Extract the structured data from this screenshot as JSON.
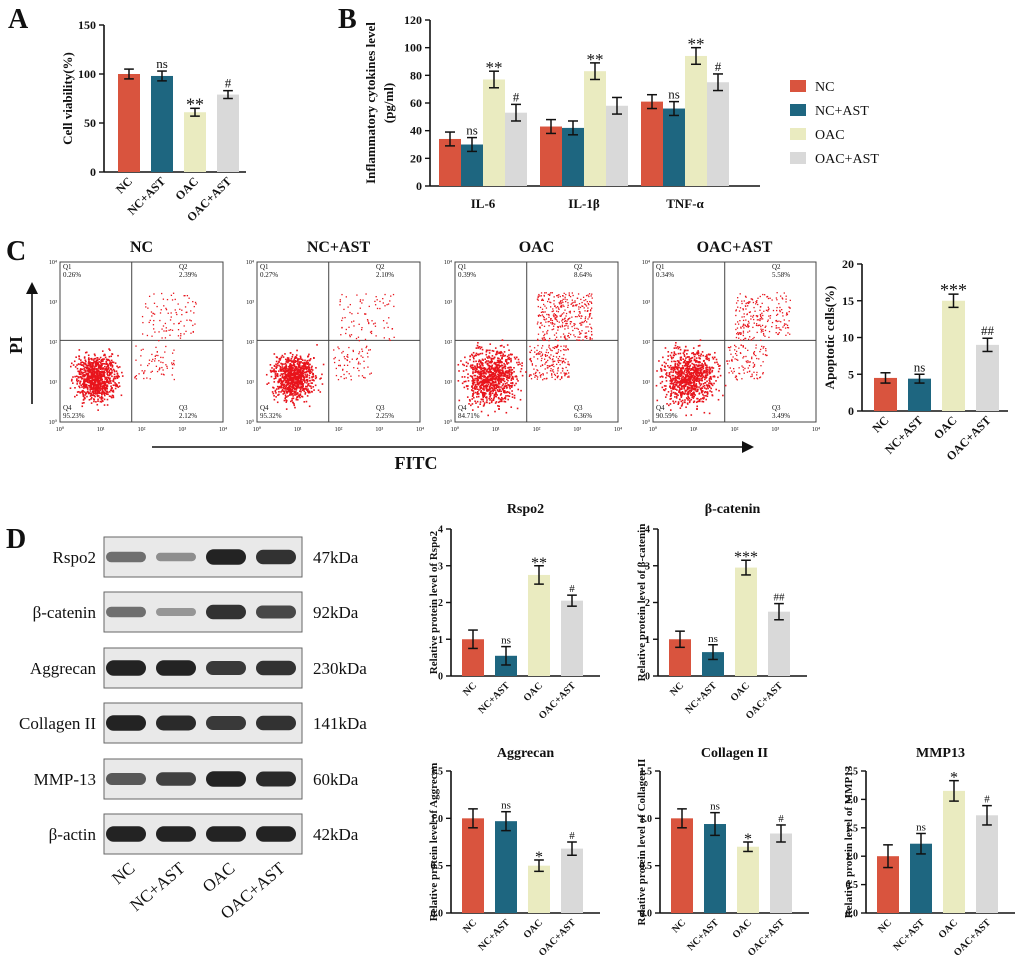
{
  "colors": {
    "NC": "#d9543e",
    "NC+AST": "#1e6680",
    "OAC": "#eaebc0",
    "OAC+AST": "#d9d9d9",
    "dot": "#e8141c",
    "blot_band": "#1a1a1a",
    "blot_bg": "#e9e9e9"
  },
  "panels": {
    "A": "A",
    "B": "B",
    "C": "C",
    "D": "D"
  },
  "chart_data": [
    {
      "id": "A",
      "type": "bar",
      "title": "",
      "ylabel": "Cell viability(%)",
      "categories": [
        "NC",
        "NC+AST",
        "OAC",
        "OAC+AST"
      ],
      "values": [
        100,
        98,
        61,
        79
      ],
      "errors": [
        5,
        5,
        4,
        4
      ],
      "annotations": [
        "",
        "ns",
        "**",
        "#"
      ],
      "ylim": [
        0,
        150
      ],
      "yticks": [
        0,
        50,
        100,
        150
      ]
    },
    {
      "id": "B",
      "type": "bar",
      "title": "",
      "ylabel": "Inflammatory cytokines level (pg/ml)",
      "groups": [
        "IL-6",
        "IL-1β",
        "TNF-α"
      ],
      "ylim": [
        0,
        120
      ],
      "yticks": [
        0,
        20,
        40,
        60,
        80,
        100,
        120
      ],
      "series": [
        {
          "name": "NC",
          "values": [
            34,
            43,
            61
          ],
          "errors": [
            5,
            5,
            5
          ],
          "annotations": [
            "",
            "",
            ""
          ]
        },
        {
          "name": "NC+AST",
          "values": [
            30,
            42,
            56
          ],
          "errors": [
            5,
            5,
            5
          ],
          "annotations": [
            "ns",
            "",
            "ns"
          ]
        },
        {
          "name": "OAC",
          "values": [
            77,
            83,
            94
          ],
          "errors": [
            6,
            6,
            6
          ],
          "annotations": [
            "**",
            "**",
            "**"
          ]
        },
        {
          "name": "OAC+AST",
          "values": [
            53,
            58,
            75
          ],
          "errors": [
            6,
            6,
            6
          ],
          "annotations": [
            "#",
            "",
            "#"
          ]
        }
      ]
    },
    {
      "id": "C",
      "type": "bar",
      "title": "",
      "ylabel": "Apoptotic cells(%)",
      "categories": [
        "NC",
        "NC+AST",
        "OAC",
        "OAC+AST"
      ],
      "values": [
        4.5,
        4.4,
        15,
        9
      ],
      "errors": [
        0.7,
        0.6,
        0.9,
        0.9
      ],
      "annotations": [
        "",
        "ns",
        "***",
        "##"
      ],
      "ylim": [
        0,
        20
      ],
      "yticks": [
        0,
        5,
        10,
        15,
        20
      ]
    },
    {
      "id": "D1",
      "type": "bar",
      "title": "Rspo2",
      "ylabel": "Relative protein level of Rspo2",
      "categories": [
        "NC",
        "NC+AST",
        "OAC",
        "OAC+AST"
      ],
      "values": [
        1.0,
        0.55,
        2.75,
        2.05
      ],
      "errors": [
        0.25,
        0.25,
        0.25,
        0.15
      ],
      "annotations": [
        "",
        "ns",
        "**",
        "#"
      ],
      "ylim": [
        0,
        4
      ],
      "yticks": [
        0,
        1,
        2,
        3,
        4
      ]
    },
    {
      "id": "D2",
      "type": "bar",
      "title": "β-catenin",
      "ylabel": "Relative protein level of β-catenin",
      "categories": [
        "NC",
        "NC+AST",
        "OAC",
        "OAC+AST"
      ],
      "values": [
        1.0,
        0.65,
        2.95,
        1.75
      ],
      "errors": [
        0.22,
        0.2,
        0.2,
        0.22
      ],
      "annotations": [
        "",
        "ns",
        "***",
        "##"
      ],
      "ylim": [
        0,
        4
      ],
      "yticks": [
        0,
        1,
        2,
        3,
        4
      ]
    },
    {
      "id": "D3",
      "type": "bar",
      "title": "Aggrecan",
      "ylabel": "Relative protein level of Aggrecan",
      "categories": [
        "NC",
        "NC+AST",
        "OAC",
        "OAC+AST"
      ],
      "values": [
        1.0,
        0.97,
        0.5,
        0.68
      ],
      "errors": [
        0.1,
        0.1,
        0.06,
        0.07
      ],
      "annotations": [
        "",
        "ns",
        "*",
        "#"
      ],
      "ylim": [
        0,
        1.5
      ],
      "yticks": [
        0.0,
        0.5,
        1.0,
        1.5
      ],
      "ytick_labels": [
        "0.0",
        "0.5",
        "1.0",
        "1.5"
      ]
    },
    {
      "id": "D4",
      "type": "bar",
      "title": "Collagen II",
      "ylabel": "Relative protein level of Collagen II",
      "categories": [
        "NC",
        "NC+AST",
        "OAC",
        "OAC+AST"
      ],
      "values": [
        1.0,
        0.94,
        0.7,
        0.84
      ],
      "errors": [
        0.1,
        0.12,
        0.05,
        0.09
      ],
      "annotations": [
        "",
        "ns",
        "*",
        "#"
      ],
      "ylim": [
        0,
        1.5
      ],
      "yticks": [
        0.0,
        0.5,
        1.0,
        1.5
      ],
      "ytick_labels": [
        "0.0",
        "0.5",
        "1.0",
        "1.5"
      ]
    },
    {
      "id": "D5",
      "type": "bar",
      "title": "MMP13",
      "ylabel": "Relative protein level of MMP13",
      "categories": [
        "NC",
        "NC+AST",
        "OAC",
        "OAC+AST"
      ],
      "values": [
        1.0,
        1.22,
        2.15,
        1.72
      ],
      "errors": [
        0.2,
        0.18,
        0.18,
        0.17
      ],
      "annotations": [
        "",
        "ns",
        "*",
        "#"
      ],
      "ylim": [
        0,
        2.5
      ],
      "yticks": [
        0.0,
        0.5,
        1.0,
        1.5,
        2.0,
        2.5
      ],
      "ytick_labels": [
        "0.0",
        "0.5",
        "1.0",
        "1.5",
        "2.0",
        "2.5"
      ]
    }
  ],
  "flow": {
    "axis_x": "FITC",
    "axis_y": "PI",
    "x_ticks": [
      "10⁰",
      "10¹",
      "10²",
      "10³",
      "10⁴"
    ],
    "y_ticks": [
      "10⁰",
      "10¹",
      "10²",
      "10³",
      "10⁴"
    ],
    "plots": [
      {
        "title": "NC",
        "q1": "Q1\n0.26%",
        "q2": "Q2\n2.39%",
        "q3": "Q3\n2.12%",
        "q4": "Q4\n95.23%",
        "late_apoptotic": 2.39,
        "early_apoptotic": 2.12
      },
      {
        "title": "NC+AST",
        "q1": "Q1\n0.27%",
        "q2": "Q2\n2.10%",
        "q3": "Q3\n2.25%",
        "q4": "Q4\n95.32%",
        "late_apoptotic": 2.1,
        "early_apoptotic": 2.25
      },
      {
        "title": "OAC",
        "q1": "Q1\n0.39%",
        "q2": "Q2\n8.64%",
        "q3": "Q3\n6.36%",
        "q4": "Q4\n84.71%",
        "late_apoptotic": 8.64,
        "early_apoptotic": 6.36
      },
      {
        "title": "OAC+AST",
        "q1": "Q1\n0.34%",
        "q2": "Q2\n5.58%",
        "q3": "Q3\n3.49%",
        "q4": "Q4\n90.59%",
        "late_apoptotic": 5.58,
        "early_apoptotic": 3.49
      }
    ]
  },
  "legend": [
    "NC",
    "NC+AST",
    "OAC",
    "OAC+AST"
  ],
  "blot": {
    "lanes": [
      "NC",
      "NC+AST",
      "OAC",
      "OAC+AST"
    ],
    "rows": [
      {
        "protein": "Rspo2",
        "size": "47kDa",
        "intensity": [
          0.45,
          0.25,
          0.95,
          0.85
        ]
      },
      {
        "protein": "β-catenin",
        "size": "92kDa",
        "intensity": [
          0.45,
          0.2,
          0.85,
          0.7
        ]
      },
      {
        "protein": "Aggrecan",
        "size": "230kDa",
        "intensity": [
          0.95,
          0.95,
          0.8,
          0.85
        ]
      },
      {
        "protein": "Collagen II",
        "size": "141kDa",
        "intensity": [
          0.95,
          0.9,
          0.8,
          0.85
        ]
      },
      {
        "protein": "MMP-13",
        "size": "60kDa",
        "intensity": [
          0.6,
          0.75,
          0.95,
          0.9
        ]
      },
      {
        "protein": "β-actin",
        "size": "42kDa",
        "intensity": [
          0.95,
          0.95,
          0.95,
          0.95
        ]
      }
    ]
  }
}
